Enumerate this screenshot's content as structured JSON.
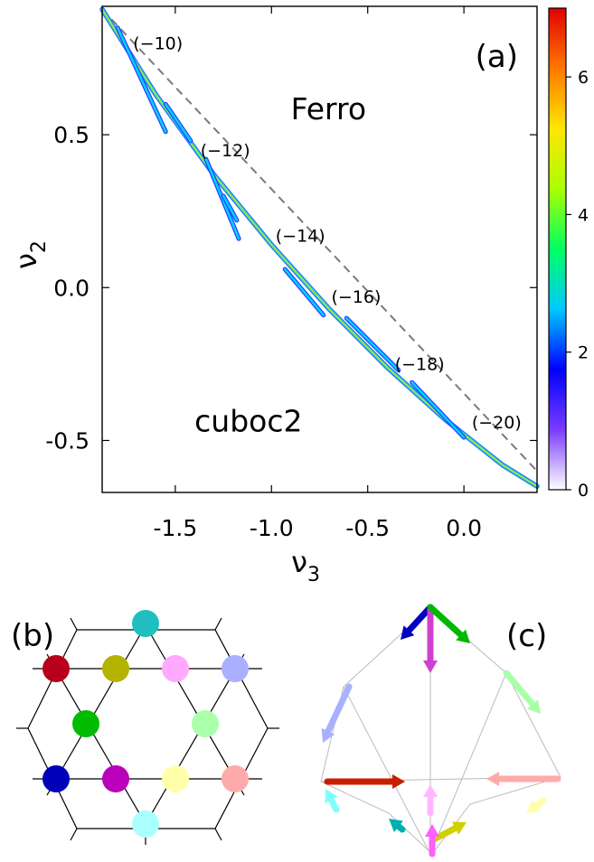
{
  "chart_data": [
    {
      "type": "scatter",
      "panel_label": "(a)",
      "xlabel": "ν",
      "xlabel_sub": "3",
      "ylabel": "ν",
      "ylabel_sub": "2",
      "xlim": [
        -1.88,
        0.38
      ],
      "ylim": [
        -0.67,
        0.92
      ],
      "xticks": [
        -1.5,
        -1.0,
        -0.5,
        0.0
      ],
      "xtick_labels": [
        "-1.5",
        "-1.0",
        "-0.5",
        "0.0"
      ],
      "yticks": [
        -0.5,
        0.0,
        0.5
      ],
      "ytick_labels": [
        "-0.5",
        "0.0",
        "0.5"
      ],
      "grid": false,
      "region_labels": [
        {
          "text": "Ferro",
          "x": -0.9,
          "y": 0.55
        },
        {
          "text": "cuboc2",
          "x": -1.4,
          "y": -0.47
        }
      ],
      "boundary_line": {
        "style": "dashed",
        "color": "#7a7a7a",
        "x": [
          -1.88,
          0.38
        ],
        "y": [
          0.91,
          -0.6
        ]
      },
      "main_curve": {
        "x": [
          -1.88,
          -1.6,
          -1.3,
          -1.0,
          -0.7,
          -0.4,
          -0.1,
          0.2,
          0.38
        ],
        "y": [
          0.91,
          0.63,
          0.37,
          0.14,
          -0.07,
          -0.26,
          -0.43,
          -0.58,
          -0.65
        ]
      },
      "segment_labels": [
        {
          "text": "(−10)",
          "x": -1.59,
          "y": 0.78
        },
        {
          "text": "(−12)",
          "x": -1.24,
          "y": 0.43
        },
        {
          "text": "(−14)",
          "x": -0.85,
          "y": 0.15
        },
        {
          "text": "(−16)",
          "x": -0.56,
          "y": -0.05
        },
        {
          "text": "(−18)",
          "x": -0.23,
          "y": -0.27
        },
        {
          "text": "(−20)",
          "x": 0.17,
          "y": -0.46
        }
      ],
      "segments": [
        {
          "x": [
            -1.55,
            -1.8
          ],
          "y": [
            0.51,
            0.85
          ]
        },
        {
          "x": [
            -1.55,
            -1.42
          ],
          "y": [
            0.6,
            0.48
          ]
        },
        {
          "x": [
            -1.17,
            -1.34
          ],
          "y": [
            0.16,
            0.42
          ]
        },
        {
          "x": [
            -1.18,
            -1.25
          ],
          "y": [
            0.22,
            0.3
          ]
        },
        {
          "x": [
            -0.73,
            -0.93
          ],
          "y": [
            -0.09,
            0.06
          ]
        },
        {
          "x": [
            -0.34,
            -0.61
          ],
          "y": [
            -0.27,
            -0.1
          ]
        },
        {
          "x": [
            0.0,
            -0.27
          ],
          "y": [
            -0.49,
            -0.31
          ]
        }
      ],
      "colorbar": {
        "range": [
          0,
          7
        ],
        "ticks": [
          0,
          2,
          4,
          6
        ],
        "tick_labels": [
          "0",
          "2",
          "4",
          "6"
        ],
        "colors": [
          "#ffffff",
          "#7a3cff",
          "#0000ff",
          "#00c8ff",
          "#00ff64",
          "#aaff00",
          "#ffe600",
          "#ff7800",
          "#e00000"
        ]
      }
    }
  ],
  "panel_b": {
    "label": "(b)",
    "dot_colors": [
      "#1fbfbf",
      "#b8001a",
      "#b3b300",
      "#ffaaff",
      "#aab0ff",
      "#00bb00",
      "#aaffaa",
      "#0000b8",
      "#bb00bb",
      "#ffffaa",
      "#ffaaaa",
      "#aaffff"
    ]
  },
  "panel_c": {
    "label": "(c)",
    "arrow_colors": [
      "#0000c0",
      "#d040d0",
      "#00b800",
      "#a8b0ff",
      "#c81e00",
      "#ffb8ff",
      "#a8ffa8",
      "#ffaaaa",
      "#80ffff",
      "#ffffaa",
      "#00b0b0",
      "#d0d000",
      "#ff60ff"
    ]
  }
}
